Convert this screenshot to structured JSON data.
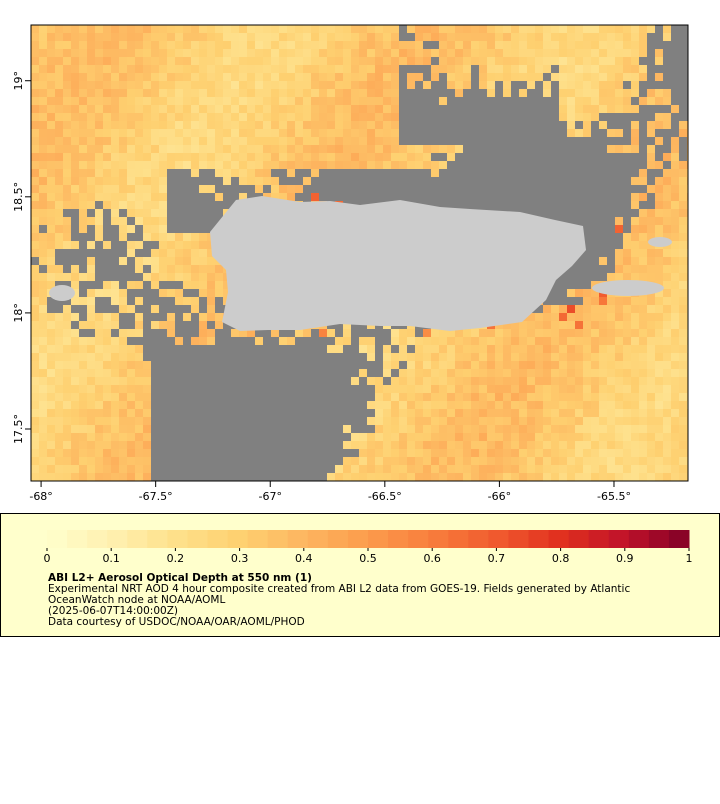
{
  "map": {
    "xlim": [
      -68.044,
      -65.177
    ],
    "ylim": [
      17.276,
      19.24
    ],
    "xticks": [
      {
        "value": -68,
        "label": "-68°"
      },
      {
        "value": -67.5,
        "label": "-67.5°"
      },
      {
        "value": -67,
        "label": "-67°"
      },
      {
        "value": -66.5,
        "label": "-66.5°"
      },
      {
        "value": -66,
        "label": "-66°"
      },
      {
        "value": -65.5,
        "label": "-65.5°"
      }
    ],
    "yticks": [
      {
        "value": 17.5,
        "label": "17.5°"
      },
      {
        "value": 18,
        "label": "18°"
      },
      {
        "value": 18.5,
        "label": "18.5°"
      },
      {
        "value": 19,
        "label": "19°"
      }
    ]
  },
  "colorbar": {
    "lim": [
      0,
      1
    ],
    "ticks": [
      0,
      0.1,
      0.2,
      0.3,
      0.4,
      0.5,
      0.6,
      0.7,
      0.8,
      0.9,
      1
    ],
    "colors": [
      "#ffffcc",
      "#fff0b0",
      "#fee08b",
      "#fed070",
      "#fdb660",
      "#fc9c4c",
      "#f87d3c",
      "#f05a2e",
      "#e0301e",
      "#c0122a",
      "#800026"
    ]
  },
  "legend": {
    "title": "ABI L2+ Aerosol Optical Depth at 550 nm (1)",
    "lines": [
      "Experimental NRT AOD 4 hour composite created from ABI L2 data from GOES-19. Fields generated by Atlantic",
      "OceanWatch node at NOAA/AOML",
      "(2025-06-07T14:00:00Z)",
      "Data courtesy of USDOC/NOAA/OAR/AOML/PHOD"
    ]
  }
}
